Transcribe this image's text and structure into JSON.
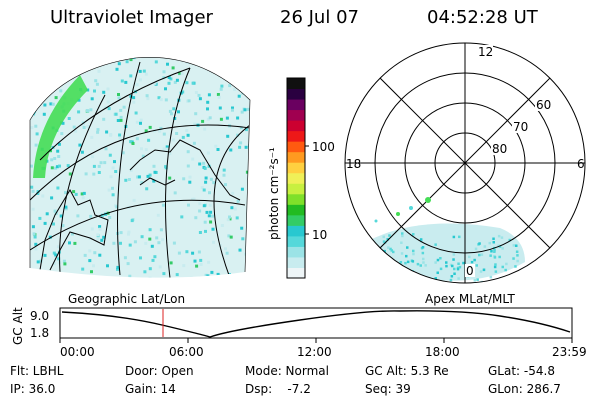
{
  "header": {
    "instrument": "Ultraviolet Imager",
    "date": "26 Jul 07",
    "time": "04:52:28 UT"
  },
  "colorbar": {
    "unit_label": "photon cm⁻²s⁻¹",
    "ticks": [
      "100",
      "10"
    ],
    "colors": [
      "#eef5f7",
      "#c8ecef",
      "#9be3e6",
      "#55d8da",
      "#28c8d0",
      "#33cc66",
      "#22bb22",
      "#7fe02a",
      "#c8f040",
      "#f0f058",
      "#ffd040",
      "#ff9a20",
      "#ff5a10",
      "#ee1818",
      "#cc0030",
      "#a00050",
      "#6a0060",
      "#2a0040",
      "#101010"
    ]
  },
  "polar_plot": {
    "labels": {
      "top": "12",
      "bottom": "0",
      "left": "18",
      "right": "6",
      "ring_60": "60",
      "ring_70": "70",
      "ring_80": "80"
    }
  },
  "orbit_strip": {
    "left_label": "Geographic Lat/Lon",
    "right_label": "Apex MLat/MLT",
    "axis_title": "GC Alt",
    "y_ticks": [
      "9.0",
      "1.8"
    ],
    "x_ticks": [
      "00:00",
      "06:00",
      "12:00",
      "18:00",
      "23:59"
    ],
    "marker_color": "#dd2222"
  },
  "info_rows": [
    [
      "Flt: LBHL",
      "Door: Open",
      "Mode: Normal",
      "GC Alt: 5.3 Re",
      "GLat: -54.8"
    ],
    [
      "IP: 36.0",
      "Gain: 14",
      "Dsp:    -7.2",
      "Seq: 39",
      "GLon: 286.7"
    ]
  ]
}
